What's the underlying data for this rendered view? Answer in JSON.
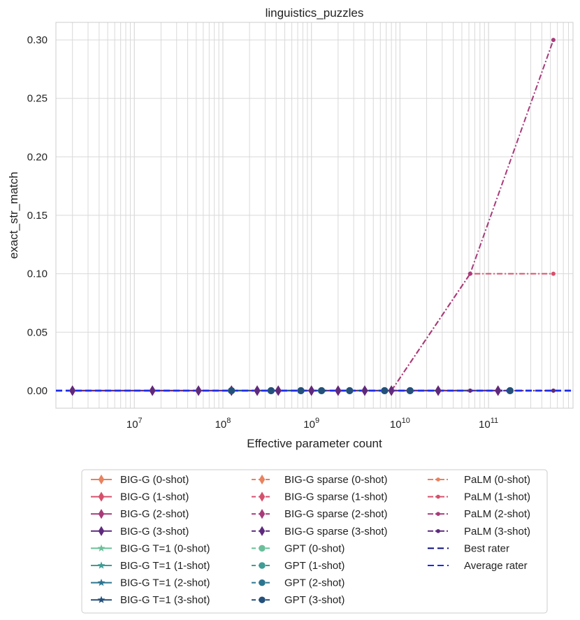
{
  "chart_data": {
    "type": "line",
    "title": "linguistics_puzzles",
    "xlabel": "Effective parameter count",
    "ylabel": "exact_str_match",
    "xscale": "log",
    "xlim": [
      1300000,
      900000000000
    ],
    "ylim": [
      -0.015,
      0.315
    ],
    "yticks": [
      0.0,
      0.05,
      0.1,
      0.15,
      0.2,
      0.25,
      0.3
    ],
    "ytick_labels": [
      "0.00",
      "0.05",
      "0.10",
      "0.15",
      "0.20",
      "0.25",
      "0.30"
    ],
    "xticks": [
      10000000,
      100000000,
      1000000000,
      10000000000,
      100000000000
    ],
    "xtick_labels": [
      {
        "base": "10",
        "exp": "7"
      },
      {
        "base": "10",
        "exp": "8"
      },
      {
        "base": "10",
        "exp": "9"
      },
      {
        "base": "10",
        "exp": "10"
      },
      {
        "base": "10",
        "exp": "11"
      }
    ],
    "grid": true,
    "legend_position": "below",
    "legend_columns": 3,
    "series": [
      {
        "name": "BIG-G (0-shot)",
        "color": "#e8825f",
        "dash": "solid",
        "marker": "thin_diamond",
        "x": [
          2000000,
          16000000,
          53000000,
          125000000,
          244000000,
          422000000,
          1000000000,
          2000000000,
          4000000000,
          8000000000,
          27000000000,
          128000000000
        ],
        "y": [
          0,
          0,
          0,
          0,
          0,
          0,
          0,
          0,
          0,
          0,
          0,
          0
        ]
      },
      {
        "name": "BIG-G (1-shot)",
        "color": "#d6506c",
        "dash": "solid",
        "marker": "thin_diamond",
        "x": [
          2000000,
          16000000,
          53000000,
          125000000,
          244000000,
          422000000,
          1000000000,
          2000000000,
          4000000000,
          8000000000,
          27000000000,
          128000000000
        ],
        "y": [
          0,
          0,
          0,
          0,
          0,
          0,
          0,
          0,
          0,
          0,
          0,
          0
        ]
      },
      {
        "name": "BIG-G (2-shot)",
        "color": "#a83a7a",
        "dash": "solid",
        "marker": "thin_diamond",
        "x": [
          2000000,
          16000000,
          53000000,
          125000000,
          244000000,
          422000000,
          1000000000,
          2000000000,
          4000000000,
          8000000000,
          27000000000,
          128000000000
        ],
        "y": [
          0,
          0,
          0,
          0,
          0,
          0,
          0,
          0,
          0,
          0,
          0,
          0
        ]
      },
      {
        "name": "BIG-G (3-shot)",
        "color": "#5e2a7e",
        "dash": "solid",
        "marker": "thin_diamond",
        "x": [
          2000000,
          16000000,
          53000000,
          125000000,
          244000000,
          422000000,
          1000000000,
          2000000000,
          4000000000,
          8000000000,
          27000000000,
          128000000000
        ],
        "y": [
          0,
          0,
          0,
          0,
          0,
          0,
          0,
          0,
          0,
          0,
          0,
          0
        ]
      },
      {
        "name": "BIG-G T=1 (0-shot)",
        "color": "#6bbf9a",
        "dash": "solid",
        "marker": "star",
        "x": [],
        "y": []
      },
      {
        "name": "BIG-G T=1 (1-shot)",
        "color": "#3f9c96",
        "dash": "solid",
        "marker": "star",
        "x": [],
        "y": []
      },
      {
        "name": "BIG-G T=1 (2-shot)",
        "color": "#2c7590",
        "dash": "solid",
        "marker": "star",
        "x": [],
        "y": []
      },
      {
        "name": "BIG-G T=1 (3-shot)",
        "color": "#24507a",
        "dash": "solid",
        "marker": "star",
        "x": [],
        "y": []
      },
      {
        "name": "BIG-G sparse (0-shot)",
        "color": "#e8825f",
        "dash": "dashed",
        "marker": "thin_diamond",
        "x": [],
        "y": []
      },
      {
        "name": "BIG-G sparse (1-shot)",
        "color": "#d6506c",
        "dash": "dashed",
        "marker": "thin_diamond",
        "x": [],
        "y": []
      },
      {
        "name": "BIG-G sparse (2-shot)",
        "color": "#a83a7a",
        "dash": "dashed",
        "marker": "thin_diamond",
        "x": [],
        "y": []
      },
      {
        "name": "BIG-G sparse (3-shot)",
        "color": "#5e2a7e",
        "dash": "dashed",
        "marker": "thin_diamond",
        "x": [],
        "y": []
      },
      {
        "name": "GPT (0-shot)",
        "color": "#6bbf9a",
        "dash": "dashed",
        "marker": "circle",
        "x": [
          125000000,
          350000000,
          760000000,
          1300000000,
          2700000000,
          6700000000,
          13000000000,
          175000000000
        ],
        "y": [
          0,
          0,
          0,
          0,
          0,
          0,
          0,
          0
        ]
      },
      {
        "name": "GPT (1-shot)",
        "color": "#3f9c96",
        "dash": "dashed",
        "marker": "circle",
        "x": [
          125000000,
          350000000,
          760000000,
          1300000000,
          2700000000,
          6700000000,
          13000000000,
          175000000000
        ],
        "y": [
          0,
          0,
          0,
          0,
          0,
          0,
          0,
          0
        ]
      },
      {
        "name": "GPT (2-shot)",
        "color": "#2c7590",
        "dash": "dashed",
        "marker": "circle",
        "x": [
          125000000,
          350000000,
          760000000,
          1300000000,
          2700000000,
          6700000000,
          13000000000,
          175000000000
        ],
        "y": [
          0,
          0,
          0,
          0,
          0,
          0,
          0,
          0
        ]
      },
      {
        "name": "GPT (3-shot)",
        "color": "#24507a",
        "dash": "dashed",
        "marker": "circle",
        "x": [
          125000000,
          350000000,
          760000000,
          1300000000,
          2700000000,
          6700000000,
          13000000000,
          175000000000
        ],
        "y": [
          0,
          0,
          0,
          0,
          0,
          0,
          0,
          0
        ]
      },
      {
        "name": "PaLM (0-shot)",
        "color": "#e8825f",
        "dash": "dashdot",
        "marker": "point",
        "x": [
          8000000000,
          62000000000,
          540000000000
        ],
        "y": [
          0,
          0,
          0
        ]
      },
      {
        "name": "PaLM (1-shot)",
        "color": "#d6506c",
        "dash": "dashdot",
        "marker": "point",
        "x": [
          8000000000,
          62000000000,
          540000000000
        ],
        "y": [
          0,
          0.1,
          0.1
        ]
      },
      {
        "name": "PaLM (2-shot)",
        "color": "#a83a7a",
        "dash": "dashdot",
        "marker": "point",
        "x": [
          8000000000,
          62000000000,
          540000000000
        ],
        "y": [
          0,
          0.1,
          0.3
        ]
      },
      {
        "name": "PaLM (3-shot)",
        "color": "#5e2a7e",
        "dash": "dashdot",
        "marker": "point",
        "x": [
          8000000000,
          62000000000,
          540000000000
        ],
        "y": [
          0,
          0,
          0
        ]
      },
      {
        "name": "Best rater",
        "color": "#0a0a7a",
        "dash": "longdash",
        "marker": "none",
        "hline": 0
      },
      {
        "name": "Average rater",
        "color": "#1a28f0",
        "dash": "longdash",
        "marker": "none",
        "hline": 0
      }
    ]
  }
}
